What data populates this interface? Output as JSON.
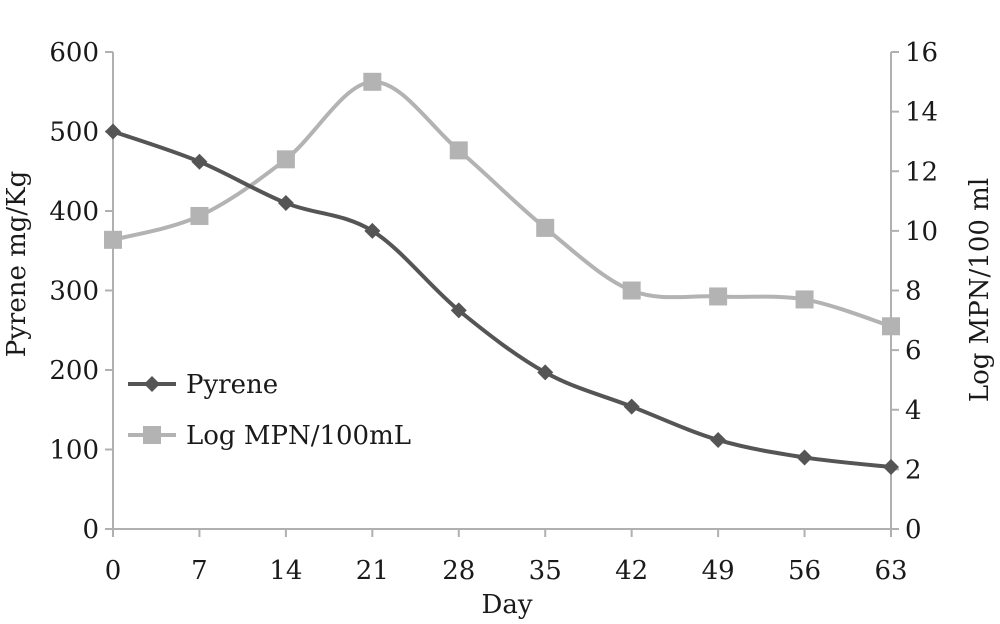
{
  "chart_data": {
    "type": "line",
    "title": "",
    "xlabel": "Day",
    "ylabel_left": "Pyrene mg/Kg",
    "ylabel_right": "Log MPN/100 ml",
    "x": [
      0,
      7,
      14,
      21,
      28,
      35,
      42,
      49,
      56,
      63
    ],
    "ylim_left": [
      0,
      600
    ],
    "ylim_right": [
      0,
      16
    ],
    "yticks_left": [
      0,
      100,
      200,
      300,
      400,
      500,
      600
    ],
    "yticks_right": [
      0,
      2,
      4,
      6,
      8,
      10,
      12,
      14,
      16
    ],
    "grid": false,
    "legend_position": "left-center",
    "series": [
      {
        "name": "Pyrene",
        "axis": "left",
        "marker": "diamond",
        "color": "#555555",
        "values": [
          500,
          462,
          410,
          375,
          275,
          197,
          154,
          112,
          90,
          78
        ]
      },
      {
        "name": "Log MPN/100mL",
        "axis": "right",
        "marker": "square",
        "color": "#b3b3b3",
        "values": [
          9.7,
          10.5,
          12.4,
          15.0,
          12.7,
          10.1,
          8.0,
          7.8,
          7.7,
          6.8
        ]
      }
    ]
  }
}
